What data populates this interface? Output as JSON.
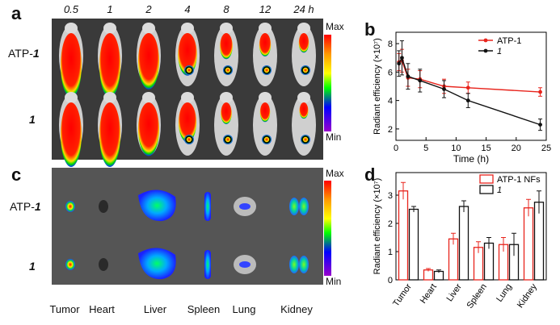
{
  "panel_a": {
    "letter": "a",
    "times": [
      "0.5",
      "1",
      "2",
      "4",
      "8",
      "12",
      "24 h"
    ],
    "rows": [
      {
        "label": "ATP-",
        "label_italic": "1"
      },
      {
        "label": "",
        "label_italic": "1"
      }
    ],
    "colorbar": {
      "max": "Max",
      "min": "Min"
    }
  },
  "panel_c": {
    "letter": "c",
    "rows": [
      {
        "label": "ATP-",
        "label_italic": "1"
      },
      {
        "label": "",
        "label_italic": "1"
      }
    ],
    "organs": [
      "Tumor",
      "Heart",
      "Liver",
      "Spleen",
      "Lung",
      "Kidney"
    ],
    "colorbar": {
      "max": "Max",
      "min": "Min"
    }
  },
  "chart_data": [
    {
      "panel": "b",
      "type": "line",
      "xlabel": "Time (h)",
      "ylabel": "Radiant efficiency (×10⁷)",
      "xlim": [
        0,
        25
      ],
      "ylim": [
        1.2,
        8.8
      ],
      "xticks": [
        0,
        5,
        10,
        15,
        20,
        25
      ],
      "yticks": [
        2,
        4,
        6,
        8
      ],
      "legend_position": "top-right",
      "series": [
        {
          "name": "ATP-1",
          "color": "#e8241c",
          "x": [
            0.5,
            1,
            2,
            4,
            8,
            12,
            24
          ],
          "y": [
            6.7,
            6.8,
            5.6,
            5.5,
            5.0,
            4.9,
            4.6
          ],
          "err": [
            0.6,
            0.8,
            0.6,
            0.6,
            0.5,
            0.4,
            0.3
          ]
        },
        {
          "name": "1",
          "color": "#111111",
          "x": [
            0.5,
            1,
            2,
            4,
            8,
            12,
            24
          ],
          "y": [
            6.6,
            7.0,
            5.7,
            5.4,
            4.8,
            4.0,
            2.3
          ],
          "err": [
            0.9,
            1.2,
            0.9,
            0.8,
            0.6,
            0.5,
            0.4
          ]
        }
      ]
    },
    {
      "panel": "d",
      "type": "bar",
      "ylabel": "Radiant efficiency (×10⁷)",
      "categories": [
        "Tumor",
        "Heart",
        "Liver",
        "Spleen",
        "Lung",
        "Kidney"
      ],
      "ylim": [
        0,
        3.8
      ],
      "yticks": [
        0,
        1,
        2,
        3
      ],
      "legend_position": "top-right",
      "series": [
        {
          "name": "ATP-1 NFs",
          "color": "#e8241c",
          "values": [
            3.15,
            0.35,
            1.45,
            1.15,
            1.25,
            2.55
          ],
          "err": [
            0.3,
            0.05,
            0.2,
            0.2,
            0.25,
            0.3
          ]
        },
        {
          "name": "1",
          "color": "#111111",
          "values": [
            2.5,
            0.3,
            2.6,
            1.3,
            1.25,
            2.75
          ],
          "err": [
            0.1,
            0.05,
            0.2,
            0.2,
            0.4,
            0.4
          ]
        }
      ]
    }
  ]
}
